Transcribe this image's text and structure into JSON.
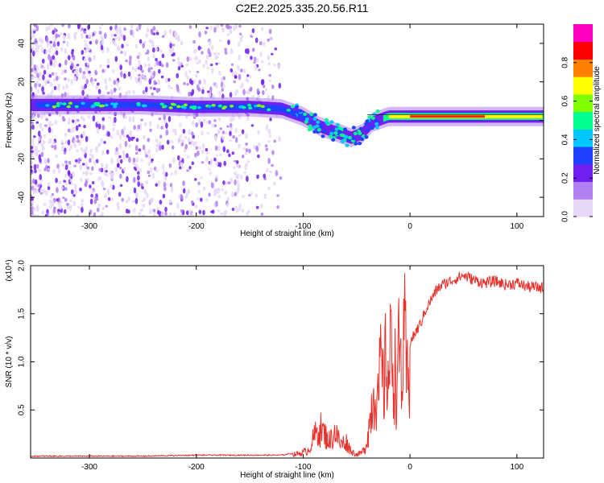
{
  "title": "C2E2.2025.335.20.56.R11",
  "chart_data": [
    {
      "type": "heatmap",
      "name": "spectrogram",
      "xlabel": "Height of straight line (km)",
      "ylabel": "Frequency (Hz)",
      "xlim": [
        -355,
        125
      ],
      "ylim": [
        -50,
        50
      ],
      "xticks": [
        -300,
        -200,
        -100,
        0,
        100
      ],
      "xtick_labels": [
        "-300",
        "-200",
        "-100",
        "0",
        "100"
      ],
      "yticks": [
        -40,
        -20,
        0,
        20,
        40
      ],
      "ytick_labels": [
        "-40",
        "-20",
        "0",
        "20",
        "40"
      ],
      "ridge": {
        "x": [
          -355,
          -300,
          -250,
          -200,
          -150,
          -120,
          -100,
          -85,
          -70,
          -55,
          -45,
          -35,
          -20,
          0,
          50,
          100,
          125
        ],
        "y": [
          8,
          8,
          8,
          7,
          7,
          6,
          2,
          -3,
          -6,
          -9,
          -7,
          -1,
          2,
          2,
          2,
          2,
          2
        ]
      },
      "colorbar": {
        "label": "Normalized spectral amplitude",
        "range": [
          0,
          1
        ],
        "ticks": [
          0.0,
          0.2,
          0.4,
          0.6,
          0.8
        ],
        "tick_labels": [
          "0.0",
          "0.2",
          "0.4",
          "0.6",
          "0.8"
        ],
        "colors": [
          "#e8d8f8",
          "#b080f0",
          "#7020f0",
          "#2040ff",
          "#00c8ff",
          "#00ff90",
          "#80ff00",
          "#ffff00",
          "#ff8000",
          "#ff0000",
          "#ff00c0"
        ]
      }
    },
    {
      "type": "line",
      "name": "snr",
      "xlabel": "Height of straight line (km)",
      "ylabel": "SNR (10 * v/v)",
      "scale_label": "(x10⁴)",
      "xlim": [
        -355,
        125
      ],
      "ylim": [
        0,
        2.0
      ],
      "xticks": [
        -300,
        -200,
        -100,
        0,
        100
      ],
      "xtick_labels": [
        "-300",
        "-200",
        "-100",
        "0",
        "100"
      ],
      "yticks": [
        0.5,
        1.0,
        1.5,
        2.0
      ],
      "ytick_labels": [
        "0.5",
        "1.0",
        "1.5",
        "2.0"
      ],
      "color": "#e8312b",
      "series": {
        "x": [
          -355,
          -300,
          -250,
          -200,
          -150,
          -120,
          -110,
          -100,
          -95,
          -90,
          -85,
          -80,
          -75,
          -70,
          -65,
          -60,
          -55,
          -50,
          -45,
          -42,
          -40,
          -37,
          -35,
          -32,
          -30,
          -27,
          -25,
          -22,
          -20,
          -17,
          -15,
          -12,
          -10,
          -7,
          -5,
          -2,
          0,
          5,
          10,
          15,
          20,
          25,
          30,
          40,
          50,
          60,
          70,
          80,
          90,
          100,
          110,
          125
        ],
        "y": [
          0.02,
          0.02,
          0.02,
          0.03,
          0.03,
          0.03,
          0.05,
          0.08,
          0.12,
          0.3,
          0.45,
          0.35,
          0.25,
          0.4,
          0.2,
          0.25,
          0.1,
          0.05,
          0.08,
          0.15,
          0.3,
          0.6,
          0.9,
          1.1,
          0.8,
          1.4,
          1.0,
          1.5,
          1.2,
          1.7,
          1.3,
          1.1,
          1.6,
          1.2,
          1.7,
          1.0,
          1.2,
          1.3,
          1.4,
          1.55,
          1.65,
          1.75,
          1.8,
          1.85,
          1.9,
          1.85,
          1.82,
          1.84,
          1.8,
          1.82,
          1.78,
          1.77
        ]
      }
    }
  ]
}
